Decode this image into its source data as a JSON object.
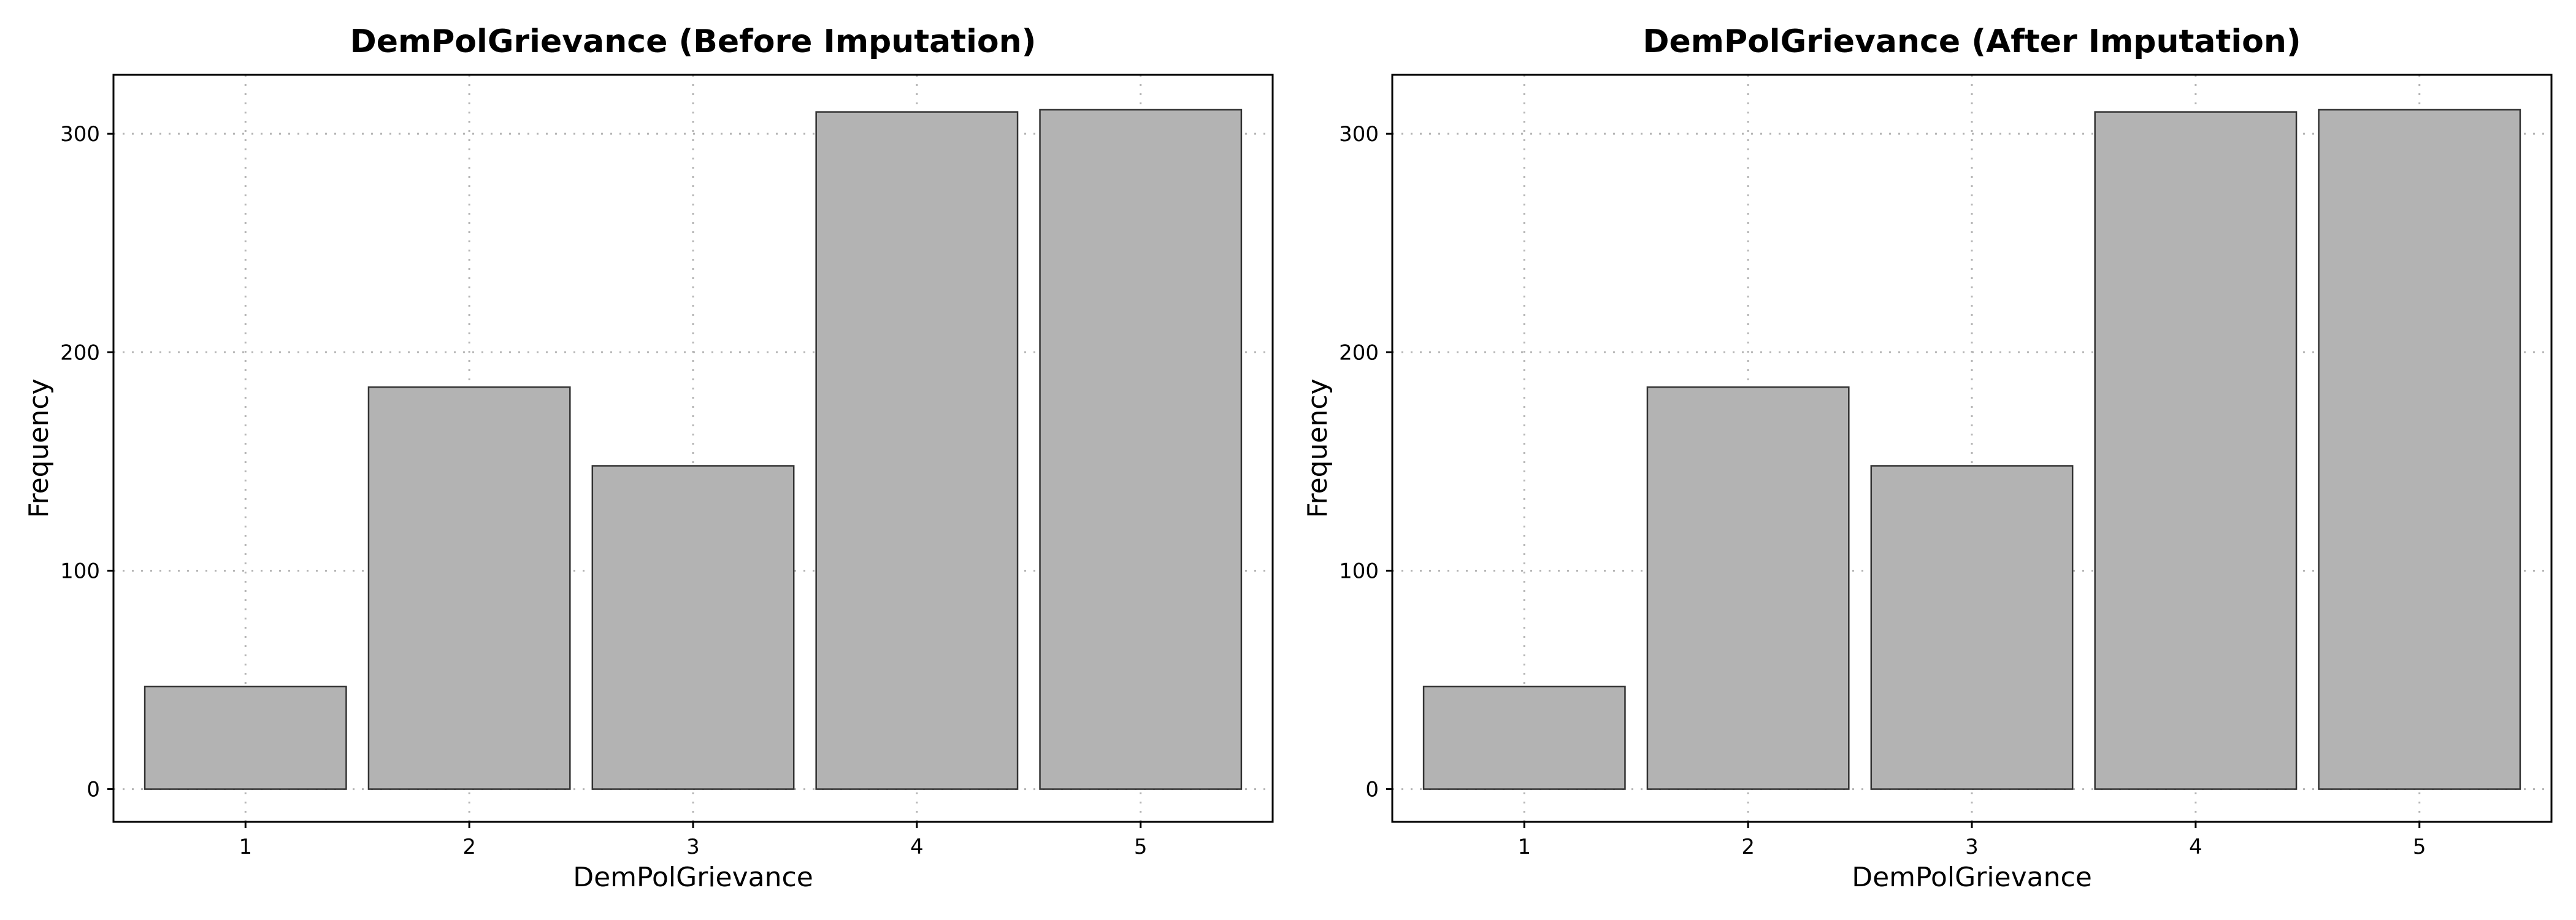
{
  "chart_data": [
    {
      "type": "bar",
      "title": "DemPolGrievance (Before Imputation)",
      "xlabel": "DemPolGrievance",
      "ylabel": "Frequency",
      "categories": [
        "1",
        "2",
        "3",
        "4",
        "5"
      ],
      "values": [
        47,
        184,
        148,
        310,
        311
      ],
      "yticks": [
        0,
        100,
        200,
        300
      ],
      "ylim": [
        -15,
        327
      ],
      "grid": true,
      "bar_color": "#b3b3b3",
      "edge_color": "#333333"
    },
    {
      "type": "bar",
      "title": "DemPolGrievance (After Imputation)",
      "xlabel": "DemPolGrievance",
      "ylabel": "Frequency",
      "categories": [
        "1",
        "2",
        "3",
        "4",
        "5"
      ],
      "values": [
        47,
        184,
        148,
        310,
        311
      ],
      "yticks": [
        0,
        100,
        200,
        300
      ],
      "ylim": [
        -15,
        327
      ],
      "grid": true,
      "bar_color": "#b3b3b3",
      "edge_color": "#333333"
    }
  ]
}
